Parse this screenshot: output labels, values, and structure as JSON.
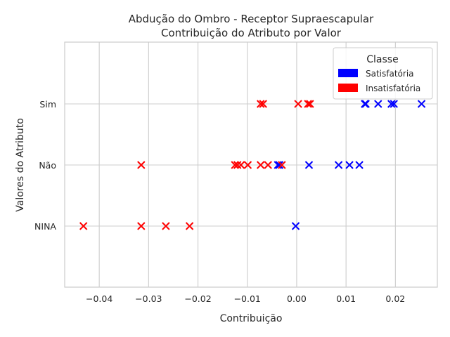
{
  "chart_data": {
    "type": "scatter",
    "title": "Abdução do Ombro - Receptor Supraescapular",
    "subtitle": "Contribuição do Atributo por Valor",
    "xlabel": "Contribuição",
    "ylabel": "Valores do Atributo",
    "xlim": [
      -0.047,
      0.0285
    ],
    "x_ticks": [
      "−0.04",
      "−0.03",
      "−0.02",
      "−0.01",
      "0.00",
      "0.01",
      "0.02"
    ],
    "x_tick_values": [
      -0.04,
      -0.03,
      -0.02,
      -0.01,
      0.0,
      0.01,
      0.02
    ],
    "categories": [
      "NINA",
      "Não",
      "Sim"
    ],
    "grid": true,
    "marker": "x",
    "legend": {
      "title": "Classe",
      "placement": "top-right",
      "entries": [
        {
          "name": "Satisfatória",
          "color": "#0000ff"
        },
        {
          "name": "Insatisfatória",
          "color": "#ff0000"
        }
      ]
    },
    "series": [
      {
        "name": "Satisfatória",
        "color": "#0000ff",
        "points": [
          {
            "x": 0.0138,
            "y": "Sim"
          },
          {
            "x": 0.014,
            "y": "Sim"
          },
          {
            "x": 0.0165,
            "y": "Sim"
          },
          {
            "x": 0.0192,
            "y": "Sim"
          },
          {
            "x": 0.0197,
            "y": "Sim"
          },
          {
            "x": 0.0253,
            "y": "Sim"
          },
          {
            "x": -0.0038,
            "y": "Não"
          },
          {
            "x": -0.0035,
            "y": "Não"
          },
          {
            "x": 0.0025,
            "y": "Não"
          },
          {
            "x": 0.0085,
            "y": "Não"
          },
          {
            "x": 0.0107,
            "y": "Não"
          },
          {
            "x": 0.0127,
            "y": "Não"
          },
          {
            "x": -0.0002,
            "y": "NINA"
          }
        ]
      },
      {
        "name": "Insatisfatória",
        "color": "#ff0000",
        "points": [
          {
            "x": -0.0073,
            "y": "Sim"
          },
          {
            "x": -0.0068,
            "y": "Sim"
          },
          {
            "x": 0.0003,
            "y": "Sim"
          },
          {
            "x": 0.0023,
            "y": "Sim"
          },
          {
            "x": 0.0027,
            "y": "Sim"
          },
          {
            "x": -0.0315,
            "y": "Não"
          },
          {
            "x": -0.0125,
            "y": "Não"
          },
          {
            "x": -0.012,
            "y": "Não"
          },
          {
            "x": -0.0113,
            "y": "Não"
          },
          {
            "x": -0.0099,
            "y": "Não"
          },
          {
            "x": -0.0073,
            "y": "Não"
          },
          {
            "x": -0.0058,
            "y": "Não"
          },
          {
            "x": -0.003,
            "y": "Não"
          },
          {
            "x": -0.0432,
            "y": "NINA"
          },
          {
            "x": -0.0315,
            "y": "NINA"
          },
          {
            "x": -0.0265,
            "y": "NINA"
          },
          {
            "x": -0.0217,
            "y": "NINA"
          }
        ]
      }
    ]
  }
}
